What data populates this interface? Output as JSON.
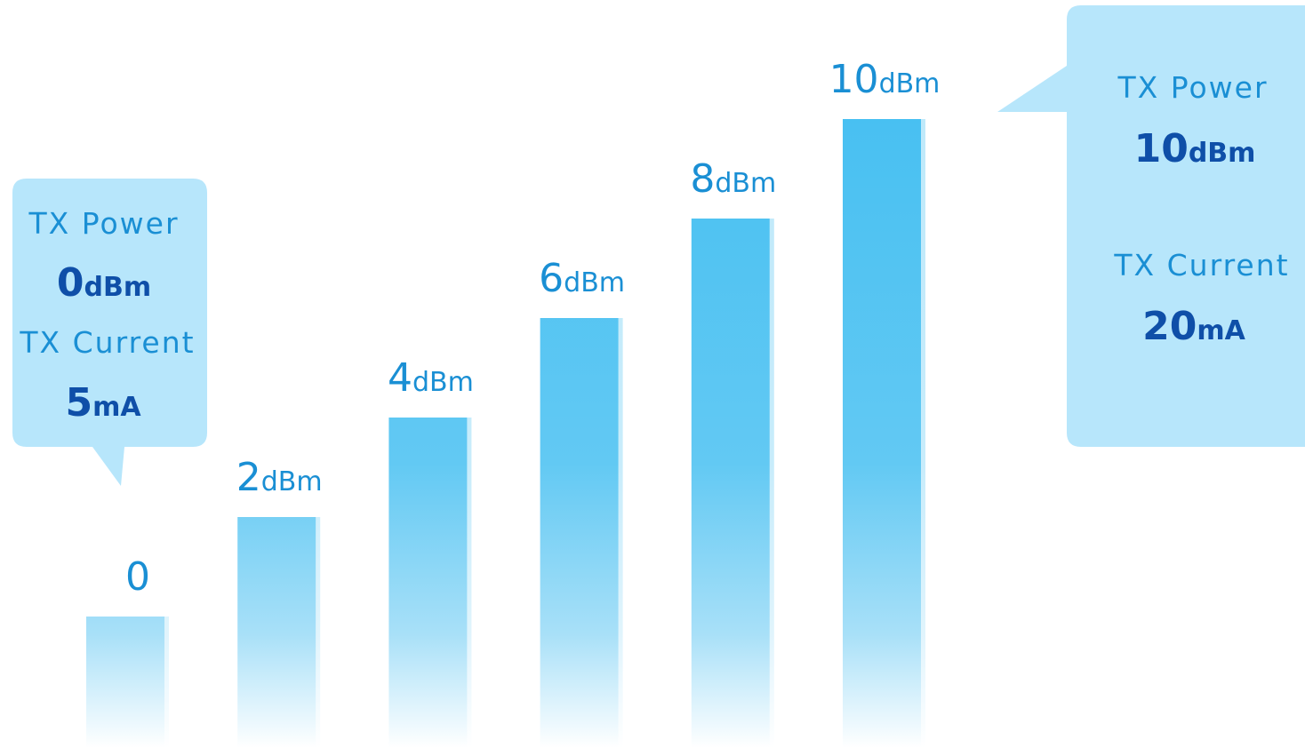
{
  "chart_data": {
    "type": "bar",
    "categories": [
      "0",
      "2",
      "4",
      "6",
      "8",
      "10"
    ],
    "values": [
      0,
      2,
      4,
      6,
      8,
      10
    ],
    "unit": "dBm",
    "bar_labels": [
      {
        "num": "0",
        "unit": ""
      },
      {
        "num": "2",
        "unit": "dBm"
      },
      {
        "num": "4",
        "unit": "dBm"
      },
      {
        "num": "6",
        "unit": "dBm"
      },
      {
        "num": "8",
        "unit": "dBm"
      },
      {
        "num": "10",
        "unit": "dBm"
      }
    ],
    "ylim": [
      -1.3,
      10
    ],
    "grid": false,
    "legend": "none",
    "colors": {
      "bar_top": "#48c0f2",
      "bar_fade": "#ffffff",
      "label": "#1a8fd4",
      "callout_bg": "#b7e6fb",
      "callout_value": "#0f4fa8"
    }
  },
  "callouts": {
    "left": {
      "power_label": "TX Power",
      "power_value": "0",
      "power_unit": "dBm",
      "current_label": "TX Current",
      "current_value": "5",
      "current_unit": "mA"
    },
    "right": {
      "power_label": "TX Power",
      "power_value": "10",
      "power_unit": "dBm",
      "current_label": "TX Current",
      "current_value": "20",
      "current_unit": "mA"
    }
  }
}
